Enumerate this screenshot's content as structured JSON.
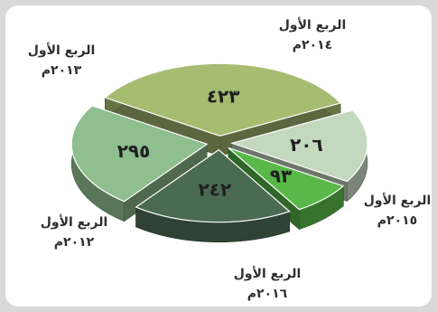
{
  "chart_data": {
    "type": "pie",
    "three_d": true,
    "exploded": true,
    "legend": "none",
    "categories": [
      "الربع الأول ٢٠١٤م",
      "الربع الأول ٢٠١٥م",
      "الربع الأول ٢٠١٦م",
      "الربع الأول ٢٠١٢م",
      "الربع الأول ٢٠١٣م"
    ],
    "values": [
      423,
      206,
      93,
      242,
      295
    ],
    "value_labels": [
      "٤٢٣",
      "٢٠٦",
      "٩٣",
      "٢٤٢",
      "٢٩٥"
    ],
    "category_lines": [
      [
        "الربع الأول",
        "٢٠١٤م"
      ],
      [
        "الربع الأول",
        "٢٠١٥م"
      ],
      [
        "الربع الأول",
        "٢٠١٦م"
      ],
      [
        "الربع الأول",
        "٢٠١٢م"
      ],
      [
        "الربع الأول",
        "٢٠١٣م"
      ]
    ],
    "colors": [
      "#a6bc71",
      "#c4d8c0",
      "#58b948",
      "#4b6a52",
      "#8fbf8f"
    ]
  }
}
